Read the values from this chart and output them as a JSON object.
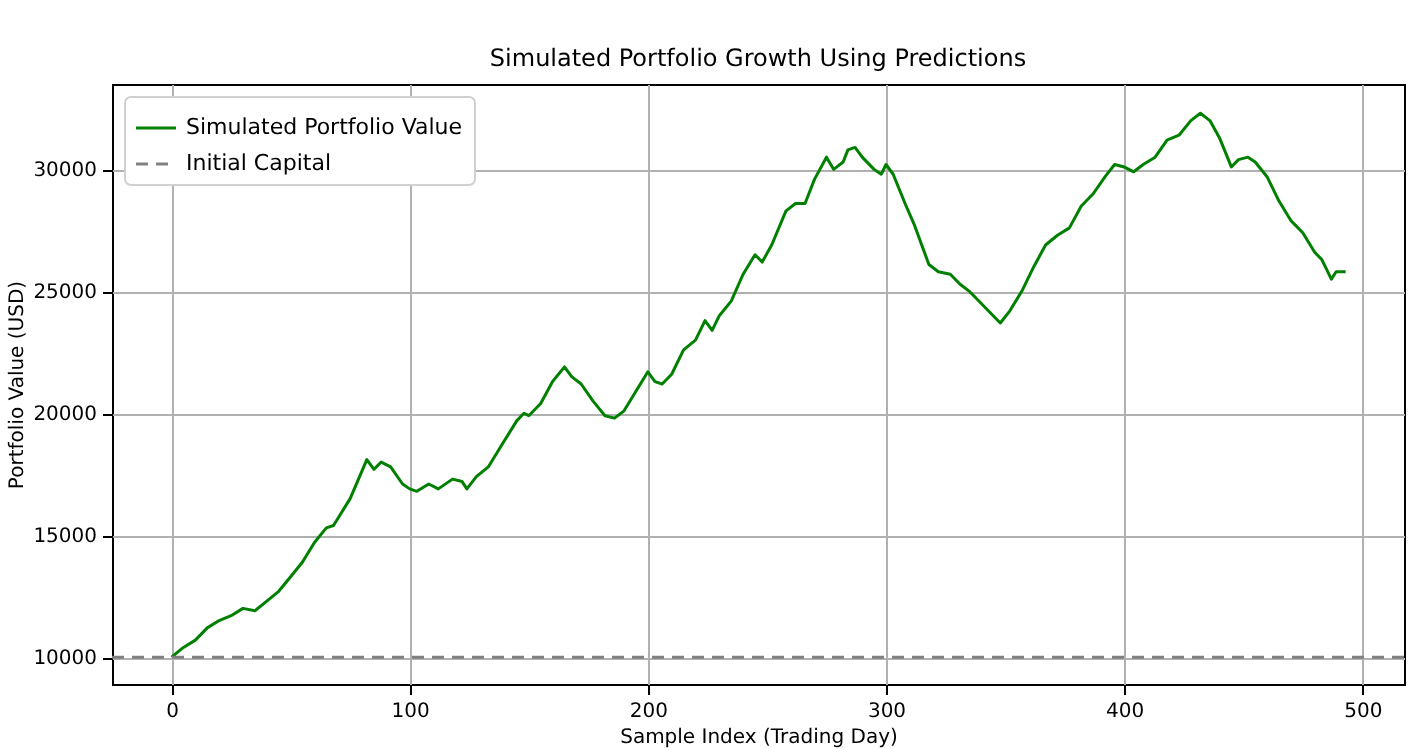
{
  "chart_data": {
    "type": "line",
    "title": "Simulated Portfolio Growth Using Predictions",
    "xlabel": "Sample Index (Trading Day)",
    "ylabel": "Portfolio Value (USD)",
    "x": [
      0,
      5,
      10,
      15,
      20,
      25,
      30,
      35,
      40,
      45,
      50,
      55,
      60,
      65,
      68,
      75,
      82,
      85,
      88,
      92,
      97,
      100,
      103,
      108,
      112,
      118,
      122,
      124,
      128,
      133,
      138,
      145,
      148,
      150,
      155,
      160,
      165,
      168,
      172,
      177,
      182,
      186,
      190,
      195,
      200,
      203,
      206,
      210,
      215,
      220,
      224,
      227,
      230,
      235,
      240,
      245,
      248,
      252,
      258,
      262,
      266,
      270,
      275,
      278,
      282,
      284,
      287,
      290,
      295,
      298,
      300,
      303,
      308,
      312,
      318,
      322,
      327,
      331,
      335,
      340,
      345,
      348,
      352,
      357,
      362,
      367,
      372,
      377,
      382,
      387,
      392,
      396,
      400,
      404,
      408,
      413,
      418,
      423,
      428,
      432,
      436,
      440,
      445,
      448,
      452,
      455,
      460,
      465,
      470,
      475,
      480,
      483,
      487,
      489,
      493
    ],
    "series": [
      {
        "name": "Simulated Portfolio Value",
        "color": "#008000",
        "values": [
          10000,
          10400,
          10700,
          11200,
          11500,
          11700,
          12000,
          11900,
          12300,
          12700,
          13300,
          13900,
          14700,
          15300,
          15400,
          16500,
          18100,
          17700,
          18000,
          17800,
          17100,
          16900,
          16800,
          17100,
          16900,
          17300,
          17200,
          16900,
          17400,
          17800,
          18600,
          19700,
          20000,
          19900,
          20400,
          21300,
          21900,
          21500,
          21200,
          20500,
          19900,
          19800,
          20100,
          20900,
          21700,
          21300,
          21200,
          21600,
          22600,
          23000,
          23800,
          23400,
          24000,
          24600,
          25700,
          26500,
          26200,
          26900,
          28300,
          28600,
          28600,
          29600,
          30500,
          30000,
          30300,
          30800,
          30900,
          30500,
          30000,
          29800,
          30200,
          29800,
          28600,
          27700,
          26100,
          25800,
          25700,
          25300,
          25000,
          24500,
          24000,
          23700,
          24200,
          25000,
          26000,
          26900,
          27300,
          27600,
          28500,
          29000,
          29700,
          30200,
          30100,
          29900,
          30200,
          30500,
          31200,
          31400,
          32000,
          32300,
          32000,
          31300,
          30100,
          30400,
          30500,
          30300,
          29700,
          28700,
          27900,
          27400,
          26600,
          26300,
          25500,
          25800,
          25800
        ]
      }
    ],
    "ref_lines": [
      {
        "axis": "y",
        "value": 10000,
        "label": "Initial Capital",
        "color": "#808080",
        "line_style": "dashed"
      }
    ],
    "xlim": [
      -25,
      517.5
    ],
    "xticks": [
      0,
      100,
      200,
      300,
      400,
      500
    ],
    "ylim": [
      8900,
      33500
    ],
    "yticks": [
      10000,
      15000,
      20000,
      25000,
      30000
    ],
    "grid": true,
    "legend": "top left"
  }
}
